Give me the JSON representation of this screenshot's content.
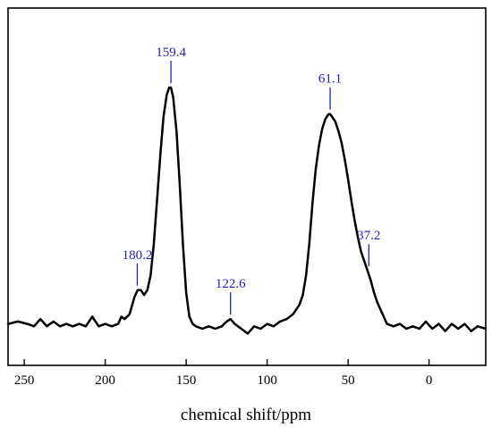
{
  "chart_data": {
    "type": "line",
    "title": "",
    "xlabel": "chemical shift/ppm",
    "ylabel": "",
    "x_reversed": true,
    "xlim": [
      260,
      -35
    ],
    "ylim": [
      0,
      1
    ],
    "grid": false,
    "legend": "none",
    "x_ticks": [
      250,
      200,
      150,
      100,
      50,
      0
    ],
    "x_tick_labels": [
      "250",
      "200",
      "150",
      "100",
      "50",
      "0"
    ],
    "line_color": "#000000",
    "annotation_color": "#2323b4",
    "series": [
      {
        "x": [
          260,
          254,
          248,
          244,
          240,
          236,
          232,
          228,
          224,
          220,
          216,
          212,
          208,
          204,
          200,
          196,
          192,
          190,
          188,
          185,
          182,
          180,
          178,
          176,
          174,
          172,
          170,
          168,
          166,
          164,
          162,
          160.5,
          159.4,
          158,
          156,
          154,
          152,
          150,
          148,
          146,
          144,
          140,
          136,
          132,
          128,
          125,
          122.6,
          120,
          116,
          112,
          108,
          104,
          100,
          96,
          92,
          88,
          84,
          82,
          80,
          78,
          76,
          74,
          72,
          70,
          68,
          66,
          64,
          62,
          61.1,
          60,
          58,
          56,
          54,
          52,
          50,
          48,
          46,
          44,
          42,
          40,
          38,
          36,
          34,
          32,
          30,
          28,
          26,
          22,
          18,
          14,
          10,
          6,
          2,
          -2,
          -6,
          -10,
          -14,
          -18,
          -22,
          -26,
          -30,
          -35
        ],
        "y": [
          0.02,
          0.03,
          0.02,
          0.01,
          0.04,
          0.01,
          0.03,
          0.01,
          0.02,
          0.01,
          0.02,
          0.01,
          0.05,
          0.01,
          0.02,
          0.01,
          0.02,
          0.05,
          0.04,
          0.06,
          0.13,
          0.16,
          0.16,
          0.14,
          0.16,
          0.22,
          0.35,
          0.53,
          0.72,
          0.88,
          0.97,
          1.0,
          1.0,
          0.96,
          0.82,
          0.6,
          0.35,
          0.15,
          0.05,
          0.02,
          0.01,
          0.0,
          0.01,
          0.0,
          0.01,
          0.03,
          0.04,
          0.02,
          0.0,
          -0.02,
          0.01,
          0.0,
          0.02,
          0.01,
          0.03,
          0.04,
          0.06,
          0.08,
          0.1,
          0.14,
          0.22,
          0.35,
          0.52,
          0.66,
          0.76,
          0.83,
          0.87,
          0.89,
          0.89,
          0.88,
          0.86,
          0.82,
          0.77,
          0.7,
          0.62,
          0.53,
          0.45,
          0.38,
          0.32,
          0.28,
          0.24,
          0.2,
          0.15,
          0.11,
          0.08,
          0.05,
          0.02,
          0.01,
          0.02,
          0.0,
          0.01,
          0.0,
          0.03,
          0.0,
          0.02,
          -0.01,
          0.02,
          0.0,
          0.02,
          -0.01,
          0.01,
          0.0
        ]
      }
    ],
    "annotations": [
      {
        "label": "159.4",
        "x": 159.4,
        "y": 1.0
      },
      {
        "label": "180.2",
        "x": 180.2,
        "y": 0.16
      },
      {
        "label": "122.6",
        "x": 122.6,
        "y": 0.04
      },
      {
        "label": "61.1",
        "x": 61.1,
        "y": 0.89
      },
      {
        "label": "37.2",
        "x": 37.2,
        "y": 0.24
      }
    ]
  }
}
